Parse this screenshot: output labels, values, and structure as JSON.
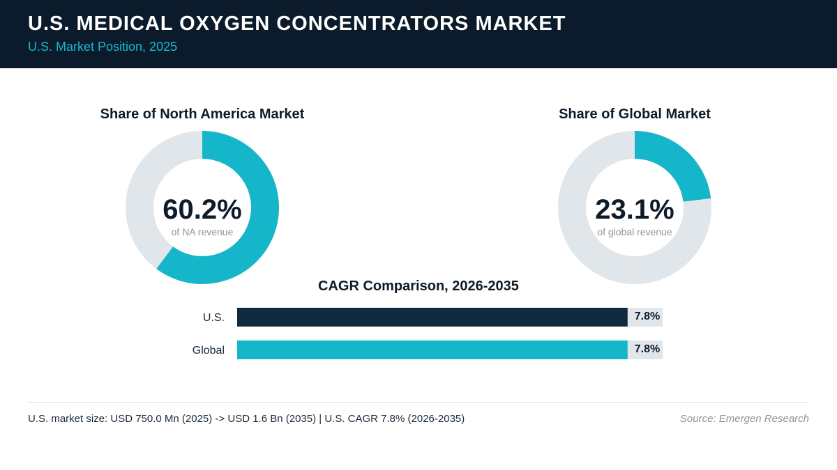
{
  "header": {
    "title": "U.S. MEDICAL OXYGEN CONCENTRATORS MARKET",
    "subtitle": "U.S. Market Position, 2025"
  },
  "colors": {
    "accent": "#15b5ca",
    "dark": "#0e2940",
    "track": "#e1e6ea",
    "header_bg": "#0b1b2b"
  },
  "chart_data": [
    {
      "type": "pie",
      "title": "Share of North America Market",
      "value": 60.2,
      "value_label": "60.2%",
      "caption": "of NA revenue"
    },
    {
      "type": "pie",
      "title": "Share of Global Market",
      "value": 23.1,
      "value_label": "23.1%",
      "caption": "of global revenue"
    },
    {
      "type": "bar",
      "title": "CAGR Comparison, 2026-2035",
      "categories": [
        "U.S.",
        "Global"
      ],
      "values": [
        7.8,
        7.8
      ],
      "value_labels": [
        "7.8%",
        "7.8%"
      ],
      "xlim": [
        0,
        8.5
      ]
    }
  ],
  "footer": {
    "note": "U.S. market size: USD 750.0 Mn (2025) -> USD 1.6 Bn (2035)  |  U.S. CAGR 7.8% (2026-2035)",
    "source": "Source: Emergen Research"
  }
}
